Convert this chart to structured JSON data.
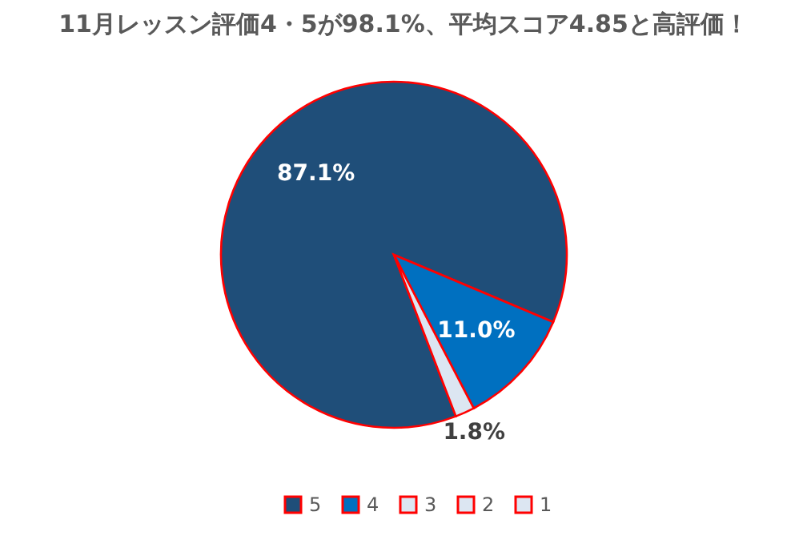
{
  "chart_data": {
    "type": "pie",
    "title": "11月レッスン評価4・5が98.1%、平均スコア4.85と高評価！",
    "categories": [
      "5",
      "4",
      "3",
      "2",
      "1"
    ],
    "values": [
      87.1,
      11.0,
      1.8,
      0,
      0
    ],
    "colors": [
      "#1f4e79",
      "#0070c0",
      "#dce6f2",
      "#dce6f2",
      "#dce6f2"
    ],
    "value_labels": [
      "87.1%",
      "11.0%",
      "1.8%",
      null,
      null
    ],
    "legend": "bottom"
  }
}
